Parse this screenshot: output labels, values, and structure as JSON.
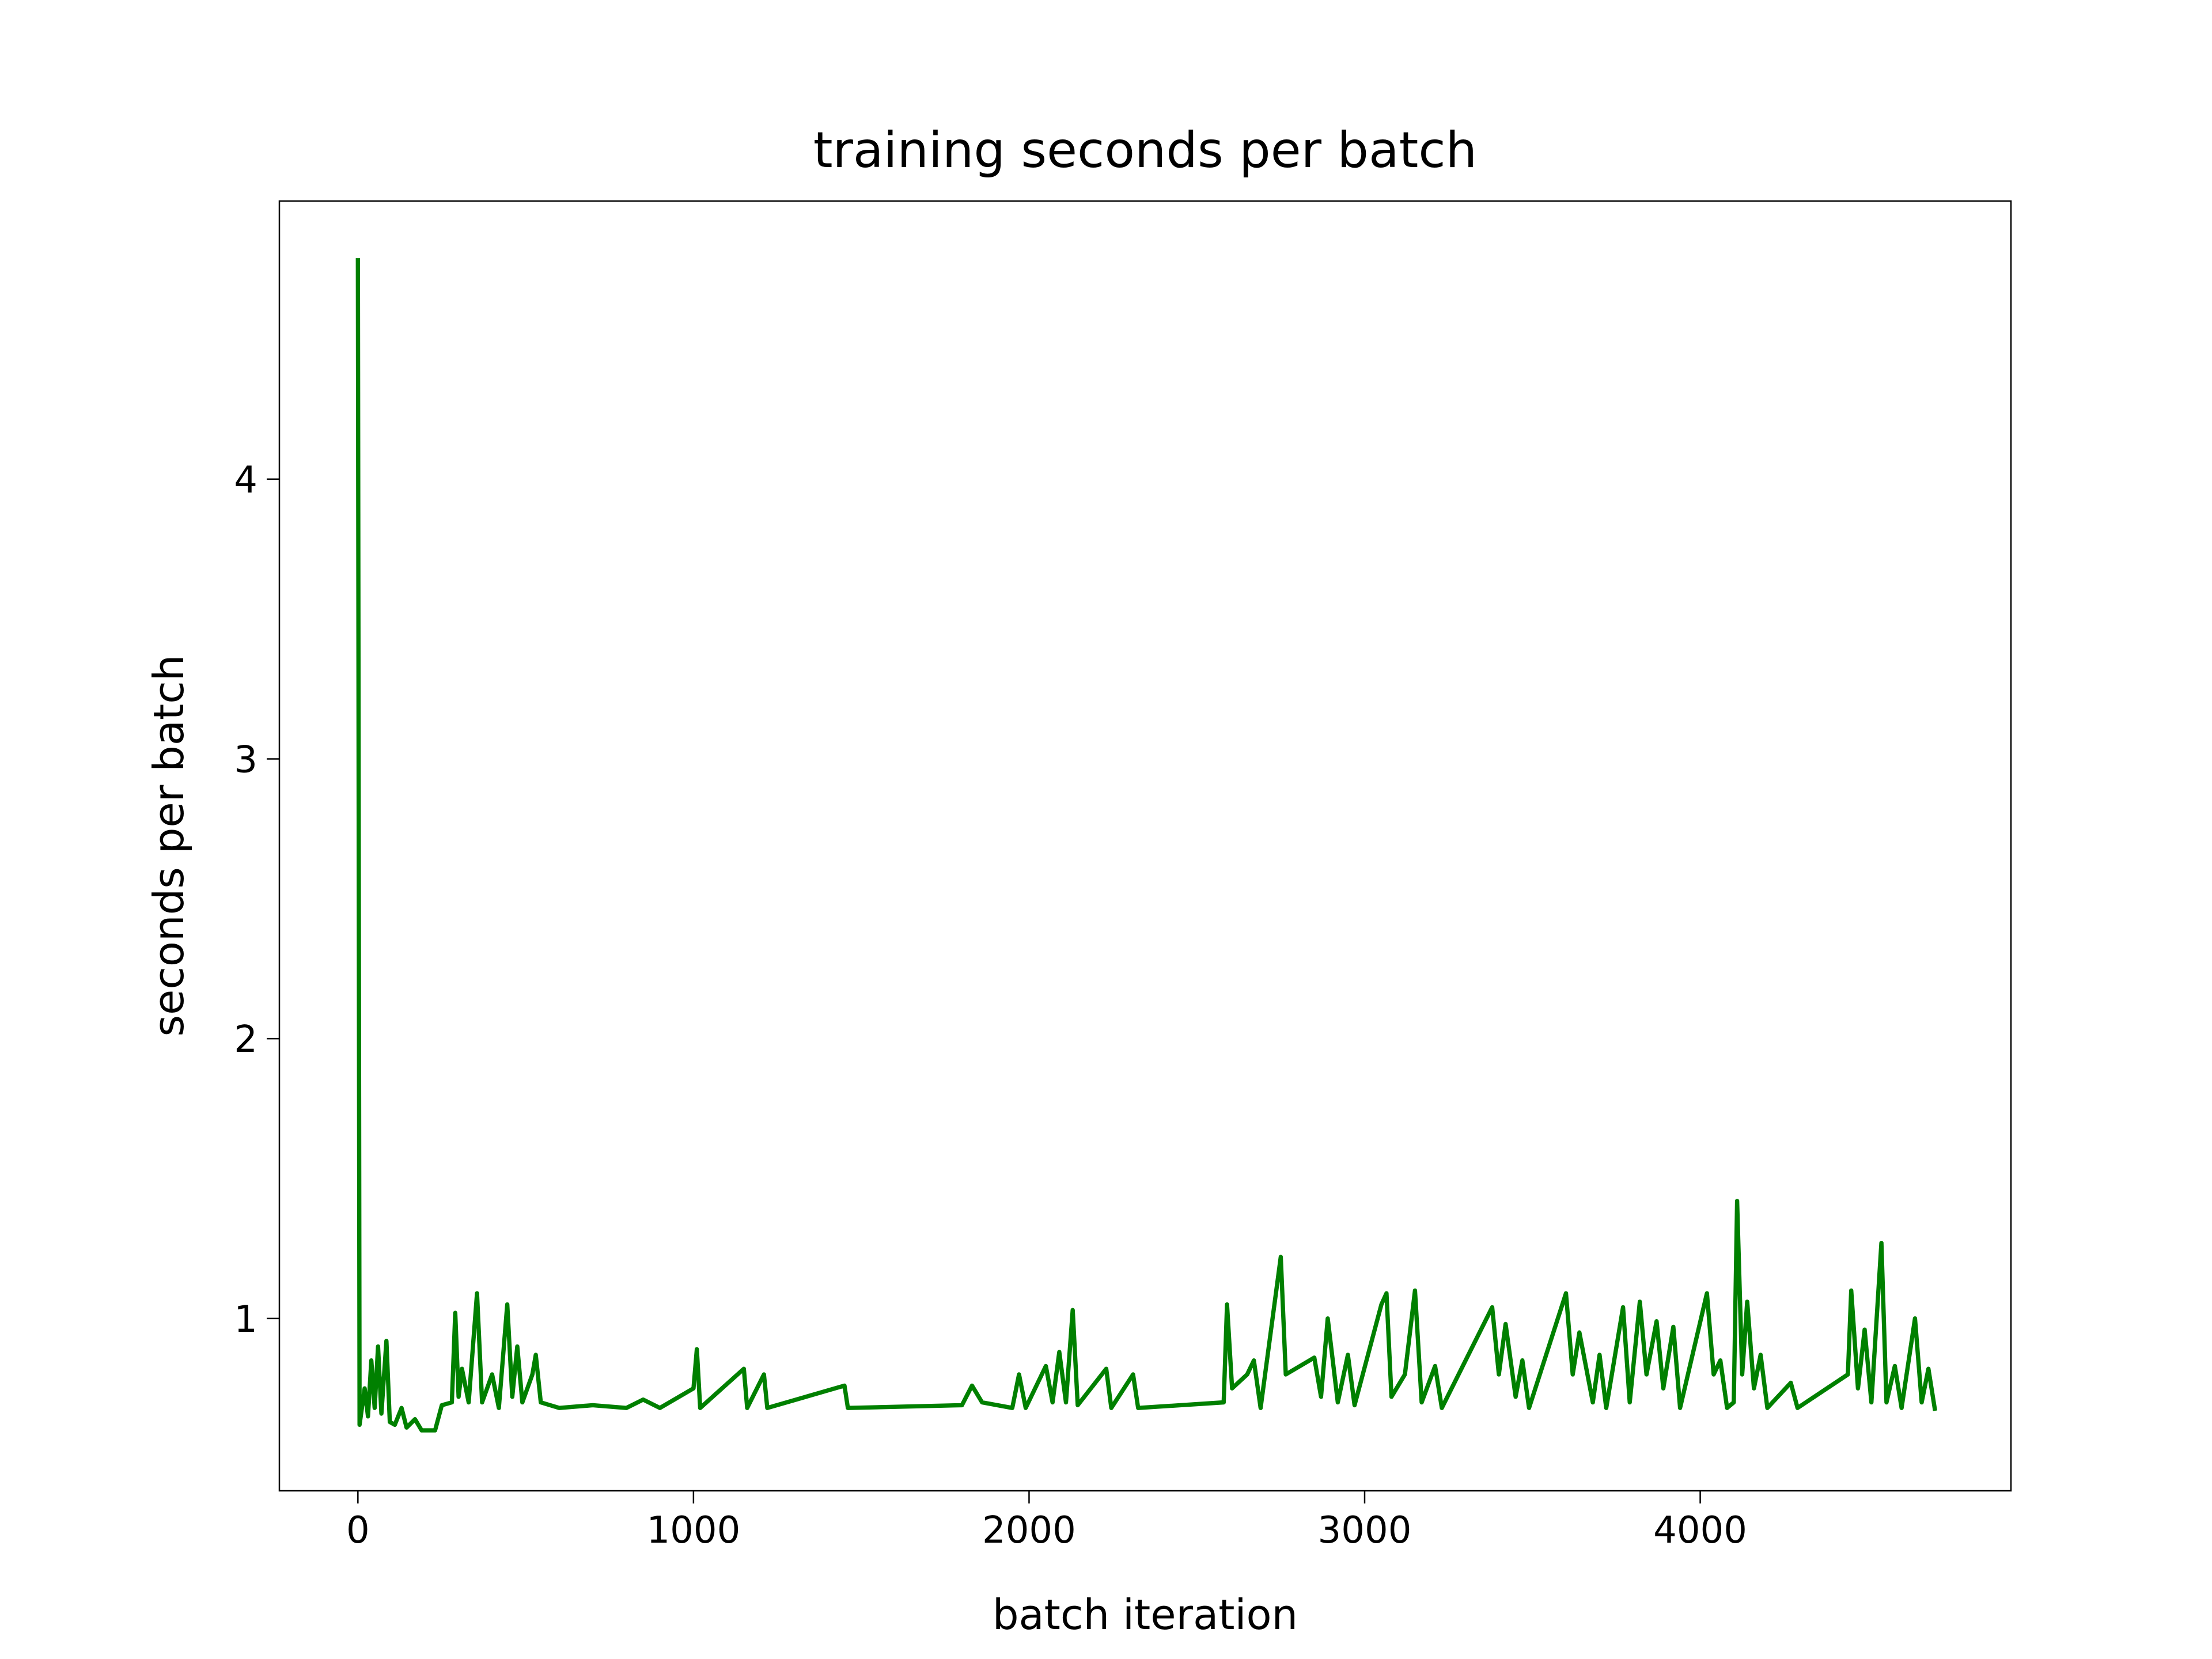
{
  "chart_data": {
    "type": "line",
    "title": "training seconds per batch",
    "x_label": "batch iteration",
    "y_label": "seconds per batch",
    "color": "#008000",
    "x": [
      0,
      5,
      20,
      30,
      40,
      50,
      60,
      70,
      85,
      95,
      110,
      130,
      145,
      170,
      190,
      230,
      250,
      280,
      290,
      300,
      310,
      330,
      355,
      370,
      400,
      420,
      445,
      460,
      475,
      490,
      520,
      530,
      545,
      600,
      700,
      800,
      850,
      900,
      1000,
      1010,
      1020,
      1150,
      1160,
      1210,
      1220,
      1450,
      1460,
      1800,
      1830,
      1860,
      1950,
      1970,
      1990,
      2050,
      2070,
      2090,
      2110,
      2130,
      2145,
      2230,
      2245,
      2310,
      2325,
      2580,
      2590,
      2605,
      2650,
      2670,
      2690,
      2750,
      2765,
      2850,
      2870,
      2890,
      2920,
      2950,
      2970,
      3050,
      3065,
      3080,
      3120,
      3150,
      3170,
      3210,
      3230,
      3380,
      3400,
      3420,
      3450,
      3470,
      3490,
      3600,
      3620,
      3640,
      3680,
      3700,
      3720,
      3770,
      3790,
      3820,
      3840,
      3870,
      3890,
      3920,
      3940,
      4020,
      4040,
      4060,
      4080,
      4100,
      4110,
      4125,
      4140,
      4160,
      4180,
      4200,
      4270,
      4290,
      4440,
      4450,
      4470,
      4490,
      4510,
      4540,
      4555,
      4580,
      4600,
      4640,
      4660,
      4680,
      4700
    ],
    "values": [
      4.79,
      0.62,
      0.75,
      0.65,
      0.85,
      0.68,
      0.9,
      0.66,
      0.92,
      0.63,
      0.62,
      0.68,
      0.61,
      0.64,
      0.6,
      0.6,
      0.69,
      0.7,
      1.02,
      0.72,
      0.82,
      0.7,
      1.09,
      0.7,
      0.8,
      0.68,
      1.05,
      0.72,
      0.9,
      0.7,
      0.8,
      0.87,
      0.7,
      0.68,
      0.69,
      0.68,
      0.71,
      0.68,
      0.75,
      0.89,
      0.68,
      0.82,
      0.68,
      0.8,
      0.68,
      0.76,
      0.68,
      0.69,
      0.76,
      0.7,
      0.68,
      0.8,
      0.68,
      0.83,
      0.7,
      0.88,
      0.7,
      1.03,
      0.69,
      0.82,
      0.68,
      0.8,
      0.68,
      0.7,
      1.05,
      0.75,
      0.8,
      0.85,
      0.68,
      1.22,
      0.8,
      0.86,
      0.72,
      1.0,
      0.7,
      0.87,
      0.69,
      1.05,
      1.09,
      0.72,
      0.8,
      1.1,
      0.7,
      0.83,
      0.68,
      1.04,
      0.8,
      0.98,
      0.72,
      0.85,
      0.68,
      1.09,
      0.8,
      0.95,
      0.7,
      0.87,
      0.68,
      1.04,
      0.7,
      1.06,
      0.8,
      0.99,
      0.75,
      0.97,
      0.68,
      1.09,
      0.8,
      0.85,
      0.68,
      0.7,
      1.42,
      0.8,
      1.06,
      0.75,
      0.87,
      0.68,
      0.77,
      0.68,
      0.8,
      1.1,
      0.75,
      0.96,
      0.7,
      1.27,
      0.7,
      0.83,
      0.68,
      1.0,
      0.7,
      0.82,
      0.67
    ],
    "xlim": [
      -234,
      4926
    ],
    "ylim": [
      0.384,
      4.994
    ],
    "xticks": [
      0,
      1000,
      2000,
      3000,
      4000
    ],
    "yticks": [
      1,
      2,
      3,
      4
    ]
  }
}
